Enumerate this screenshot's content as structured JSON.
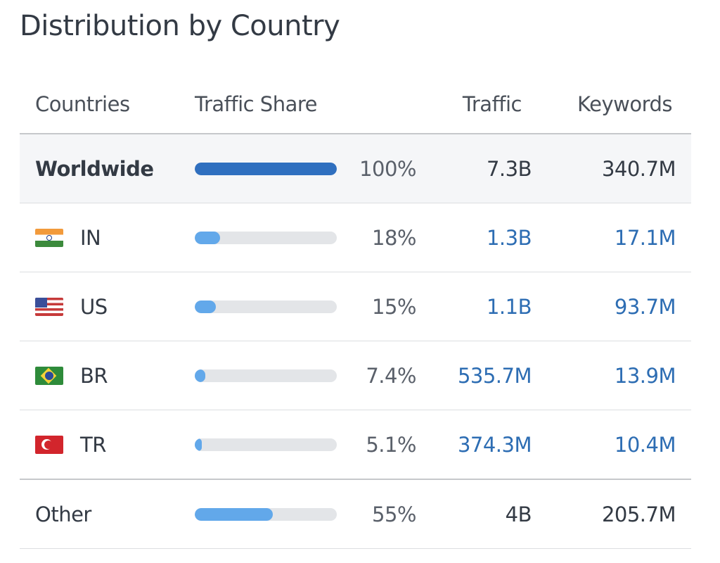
{
  "title": "Distribution by Country",
  "columns": {
    "countries": "Countries",
    "traffic_share": "Traffic Share",
    "traffic": "Traffic",
    "keywords": "Keywords"
  },
  "rows": [
    {
      "country": "Worldwide",
      "flag": "",
      "share_fraction": 1.0,
      "share": "100%",
      "traffic": "7.3B",
      "keywords": "340.7M"
    },
    {
      "country": "IN",
      "flag": "india-flag-icon",
      "share_fraction": 0.18,
      "share": "18%",
      "traffic": "1.3B",
      "keywords": "17.1M"
    },
    {
      "country": "US",
      "flag": "us-flag-icon",
      "share_fraction": 0.15,
      "share": "15%",
      "traffic": "1.1B",
      "keywords": "93.7M"
    },
    {
      "country": "BR",
      "flag": "brazil-flag-icon",
      "share_fraction": 0.074,
      "share": "7.4%",
      "traffic": "535.7M",
      "keywords": "13.9M"
    },
    {
      "country": "TR",
      "flag": "turkey-flag-icon",
      "share_fraction": 0.051,
      "share": "5.1%",
      "traffic": "374.3M",
      "keywords": "10.4M"
    },
    {
      "country": "Other",
      "flag": "",
      "share_fraction": 0.55,
      "share": "55%",
      "traffic": "4B",
      "keywords": "205.7M"
    }
  ],
  "colors": {
    "worldwide_bar": "#2f6fbf",
    "country_bar": "#62a8ea",
    "bar_track": "#e3e5e8",
    "link": "#2d6db3"
  }
}
